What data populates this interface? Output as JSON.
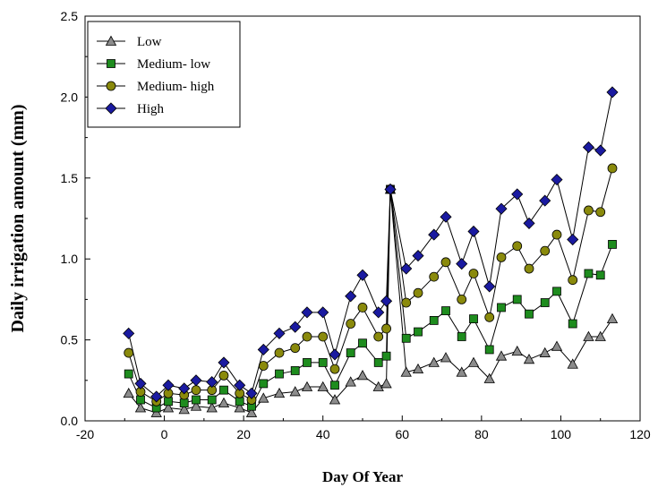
{
  "chart_data": {
    "type": "line",
    "xlabel": "Day Of Year",
    "ylabel": "Daily irrigation amount (mm)",
    "xlim": [
      -20,
      120
    ],
    "ylim": [
      0.0,
      2.5
    ],
    "xticks": [
      "-20",
      "0",
      "20",
      "40",
      "60",
      "80",
      "100",
      "120"
    ],
    "yticks": [
      "0.0",
      "0.5",
      "1.0",
      "1.5",
      "2.0",
      "2.5"
    ],
    "grid": false,
    "legend_position": "top-left",
    "x": [
      -9,
      -6,
      -2,
      1,
      5,
      8,
      12,
      15,
      19,
      22,
      25,
      29,
      33,
      36,
      40,
      43,
      47,
      50,
      54,
      56,
      57,
      61,
      64,
      68,
      71,
      75,
      78,
      82,
      85,
      89,
      92,
      96,
      99,
      103,
      107,
      110,
      113
    ],
    "series": [
      {
        "name": "Low",
        "marker": "triangle",
        "color": "#8c8c8c",
        "values": [
          0.17,
          0.08,
          0.05,
          0.08,
          0.07,
          0.09,
          0.08,
          0.11,
          0.08,
          0.05,
          0.14,
          0.17,
          0.18,
          0.21,
          0.21,
          0.13,
          0.24,
          0.28,
          0.21,
          0.23,
          1.43,
          0.3,
          0.32,
          0.36,
          0.39,
          0.3,
          0.36,
          0.26,
          0.4,
          0.43,
          0.38,
          0.42,
          0.46,
          0.35,
          0.52,
          0.52,
          0.63
        ]
      },
      {
        "name": "Medium- low",
        "marker": "square",
        "color": "#1e8c1e",
        "values": [
          0.29,
          0.13,
          0.08,
          0.12,
          0.11,
          0.13,
          0.13,
          0.19,
          0.12,
          0.09,
          0.23,
          0.29,
          0.31,
          0.36,
          0.36,
          0.22,
          0.42,
          0.48,
          0.36,
          0.4,
          1.43,
          0.51,
          0.55,
          0.62,
          0.68,
          0.52,
          0.63,
          0.44,
          0.7,
          0.75,
          0.66,
          0.73,
          0.8,
          0.6,
          0.91,
          0.9,
          1.09
        ]
      },
      {
        "name": "Medium- high",
        "marker": "circle",
        "color": "#8a8a0c",
        "values": [
          0.42,
          0.18,
          0.12,
          0.17,
          0.16,
          0.19,
          0.19,
          0.28,
          0.17,
          0.13,
          0.34,
          0.42,
          0.45,
          0.52,
          0.52,
          0.32,
          0.6,
          0.7,
          0.52,
          0.57,
          1.43,
          0.73,
          0.79,
          0.89,
          0.98,
          0.75,
          0.91,
          0.64,
          1.01,
          1.08,
          0.94,
          1.05,
          1.15,
          0.87,
          1.3,
          1.29,
          1.56
        ]
      },
      {
        "name": "High",
        "marker": "diamond",
        "color": "#1a1aa0",
        "values": [
          0.54,
          0.23,
          0.15,
          0.22,
          0.2,
          0.25,
          0.24,
          0.36,
          0.22,
          0.17,
          0.44,
          0.54,
          0.58,
          0.67,
          0.67,
          0.41,
          0.77,
          0.9,
          0.67,
          0.74,
          1.43,
          0.94,
          1.02,
          1.15,
          1.26,
          0.97,
          1.17,
          0.83,
          1.31,
          1.4,
          1.22,
          1.36,
          1.49,
          1.12,
          1.69,
          1.67,
          2.03
        ]
      }
    ]
  }
}
